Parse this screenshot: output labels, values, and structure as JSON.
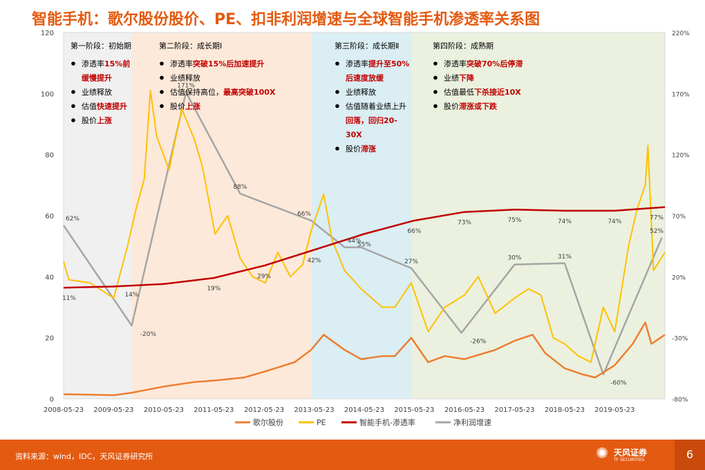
{
  "title": "智能手机：歌尔股份股价、PE、扣非利润增速与全球智能手机渗透率关系图",
  "source": "资料来源：wind，IDC，天风证券研究所",
  "logo": {
    "name": "天风证券",
    "sub": "TF SECURITIES"
  },
  "page_number": "6",
  "colors": {
    "stock": "#ed7d31",
    "pe": "#ffc000",
    "pen": "#c00000",
    "growth": "#a5a5a5",
    "phase1": "#f0f0f0",
    "phase2": "#fde9d9",
    "phase3": "#daeef3",
    "phase4": "#ebf1de",
    "emph": "#c00000"
  },
  "phases": [
    {
      "title": "第一阶段：初始期",
      "start": "2008-05-23",
      "end": "2009-10-01",
      "bullets": [
        [
          [
            "渗透率",
            ""
          ],
          [
            "15%前",
            "e"
          ]
        ],
        [
          [
            "缓慢提升",
            "e"
          ]
        ],
        [
          [
            "业绩释放",
            ""
          ]
        ],
        [
          [
            "估值",
            ""
          ],
          [
            "快速提升",
            "e"
          ]
        ],
        [
          [
            "股价",
            ""
          ],
          [
            "上涨",
            "e"
          ]
        ]
      ]
    },
    {
      "title": "第二阶段：成长期Ⅰ",
      "start": "2009-10-01",
      "end": "2013-05-01",
      "bullets": [
        [
          [
            "渗透率",
            ""
          ],
          [
            "突破15%后加速提升",
            "e"
          ]
        ],
        [
          [
            "业绩释放",
            ""
          ]
        ],
        [
          [
            "估值保持高位，",
            ""
          ],
          [
            "最高突破100X",
            "e"
          ]
        ],
        [
          [
            "股价",
            ""
          ],
          [
            "上涨",
            "e"
          ]
        ]
      ]
    },
    {
      "title": "第三阶段：成长期Ⅱ",
      "start": "2013-05-01",
      "end": "2015-05-01",
      "bullets": [
        [
          [
            "渗透率",
            ""
          ],
          [
            "提升至50%",
            "e"
          ]
        ],
        [
          [
            "后速度放缓",
            "e"
          ]
        ],
        [
          [
            "业绩释放",
            ""
          ]
        ],
        [
          [
            "估值随着业绩上升",
            ""
          ]
        ],
        [
          [
            "回落，回归20-",
            "e"
          ]
        ],
        [
          [
            "30X",
            "e"
          ]
        ],
        [
          [
            "股价",
            ""
          ],
          [
            "滞涨",
            "e"
          ]
        ]
      ]
    },
    {
      "title": "第四阶段：成熟期",
      "start": "2015-05-01",
      "end": "2020-05-23",
      "bullets": [
        [
          [
            "渗透率",
            ""
          ],
          [
            "突破70%后停滞",
            "e"
          ]
        ],
        [
          [
            "业绩",
            ""
          ],
          [
            "下降",
            "e"
          ]
        ],
        [
          [
            "估值最低",
            ""
          ],
          [
            "下杀接近10X",
            "e"
          ]
        ],
        [
          [
            "股价",
            ""
          ],
          [
            "滞涨或下跌",
            "e"
          ]
        ]
      ]
    }
  ],
  "chart_data": {
    "type": "line",
    "x_range": [
      "2008-05-23",
      "2020-05-23"
    ],
    "x_ticks": [
      "2008-05-23",
      "2009-05-23",
      "2010-05-23",
      "2011-05-23",
      "2012-05-23",
      "2013-05-23",
      "2014-05-23",
      "2015-05-23",
      "2016-05-23",
      "2017-05-23",
      "2018-05-23",
      "2019-05-23"
    ],
    "y_left": {
      "min": 0,
      "max": 120,
      "ticks": [
        "0",
        "20",
        "40",
        "60",
        "80",
        "100",
        "120"
      ]
    },
    "y_right": {
      "min": -80,
      "max": 220,
      "ticks": [
        "-80%",
        "-30%",
        "20%",
        "70%",
        "120%",
        "170%",
        "220%"
      ]
    },
    "series": [
      {
        "name": "歌尔股份",
        "axis": "left",
        "points": [
          [
            "2008-05-23",
            1.5
          ],
          [
            "2009-05-23",
            1.2
          ],
          [
            "2009-10-01",
            2
          ],
          [
            "2010-05-23",
            4
          ],
          [
            "2011-01-01",
            5.5
          ],
          [
            "2011-06-01",
            6
          ],
          [
            "2012-01-01",
            7
          ],
          [
            "2012-06-01",
            9
          ],
          [
            "2013-01-01",
            12
          ],
          [
            "2013-05-01",
            16
          ],
          [
            "2013-08-01",
            21
          ],
          [
            "2014-01-01",
            16
          ],
          [
            "2014-05-01",
            13
          ],
          [
            "2014-10-01",
            14
          ],
          [
            "2015-01-01",
            14
          ],
          [
            "2015-05-01",
            20
          ],
          [
            "2015-09-01",
            12
          ],
          [
            "2016-01-01",
            14
          ],
          [
            "2016-05-23",
            13
          ],
          [
            "2017-01-01",
            16
          ],
          [
            "2017-05-23",
            19
          ],
          [
            "2017-10-01",
            21
          ],
          [
            "2018-01-01",
            15
          ],
          [
            "2018-05-23",
            10
          ],
          [
            "2018-10-01",
            8
          ],
          [
            "2019-01-01",
            7
          ],
          [
            "2019-05-23",
            11
          ],
          [
            "2019-10-01",
            18
          ],
          [
            "2020-01-01",
            25
          ],
          [
            "2020-02-15",
            18
          ],
          [
            "2020-05-23",
            21
          ]
        ]
      },
      {
        "name": "PE",
        "axis": "left",
        "points": [
          [
            "2008-05-23",
            45
          ],
          [
            "2008-07-01",
            39
          ],
          [
            "2008-12-01",
            38
          ],
          [
            "2009-05-23",
            33
          ],
          [
            "2009-09-01",
            50
          ],
          [
            "2009-11-01",
            62
          ],
          [
            "2010-01-01",
            72
          ],
          [
            "2010-02-15",
            101
          ],
          [
            "2010-04-01",
            86
          ],
          [
            "2010-07-01",
            75
          ],
          [
            "2010-10-01",
            95
          ],
          [
            "2011-01-01",
            85
          ],
          [
            "2011-03-01",
            76
          ],
          [
            "2011-06-01",
            54
          ],
          [
            "2011-09-01",
            60
          ],
          [
            "2011-12-01",
            46
          ],
          [
            "2012-03-01",
            40
          ],
          [
            "2012-06-01",
            38
          ],
          [
            "2012-09-01",
            48
          ],
          [
            "2012-12-01",
            40
          ],
          [
            "2013-03-01",
            44
          ],
          [
            "2013-05-01",
            55
          ],
          [
            "2013-08-01",
            67
          ],
          [
            "2013-10-01",
            52
          ],
          [
            "2014-01-01",
            42
          ],
          [
            "2014-05-01",
            36
          ],
          [
            "2014-10-01",
            30
          ],
          [
            "2015-01-01",
            30
          ],
          [
            "2015-05-01",
            38
          ],
          [
            "2015-09-01",
            22
          ],
          [
            "2016-01-01",
            30
          ],
          [
            "2016-05-23",
            34
          ],
          [
            "2016-09-01",
            40
          ],
          [
            "2017-01-01",
            28
          ],
          [
            "2017-05-23",
            33
          ],
          [
            "2017-09-01",
            36
          ],
          [
            "2017-12-01",
            34
          ],
          [
            "2018-03-01",
            20
          ],
          [
            "2018-05-23",
            18
          ],
          [
            "2018-09-01",
            14
          ],
          [
            "2018-12-01",
            12
          ],
          [
            "2019-03-01",
            30
          ],
          [
            "2019-05-23",
            22
          ],
          [
            "2019-09-01",
            50
          ],
          [
            "2019-11-01",
            62
          ],
          [
            "2020-01-01",
            70
          ],
          [
            "2020-01-20",
            83
          ],
          [
            "2020-03-01",
            42
          ],
          [
            "2020-05-23",
            48
          ]
        ]
      },
      {
        "name": "智能手机-渗透率",
        "axis": "right",
        "points": [
          [
            "2008-05-23",
            11
          ],
          [
            "2009-05-23",
            12
          ],
          [
            "2010-05-23",
            14
          ],
          [
            "2011-05-23",
            19
          ],
          [
            "2012-05-23",
            29
          ],
          [
            "2013-05-23",
            42
          ],
          [
            "2014-05-23",
            55
          ],
          [
            "2015-05-23",
            66
          ],
          [
            "2016-05-23",
            73
          ],
          [
            "2017-05-23",
            75
          ],
          [
            "2018-05-23",
            74
          ],
          [
            "2019-05-23",
            74
          ],
          [
            "2020-05-23",
            77
          ]
        ]
      },
      {
        "name": "净利润增速",
        "axis": "right",
        "points": [
          [
            "2008-05-23",
            62
          ],
          [
            "2009-10-01",
            -20
          ],
          [
            "2010-11-01",
            171
          ],
          [
            "2011-12-01",
            88
          ],
          [
            "2013-05-01",
            66
          ],
          [
            "2014-01-01",
            44
          ],
          [
            "2014-05-01",
            44
          ],
          [
            "2015-05-01",
            27
          ],
          [
            "2016-05-01",
            -26
          ],
          [
            "2017-05-23",
            30
          ],
          [
            "2018-05-23",
            31
          ],
          [
            "2019-03-01",
            -60
          ],
          [
            "2020-05-01",
            52
          ]
        ]
      }
    ],
    "labels": {
      "pen": [
        [
          "2008-05-23",
          "11%"
        ],
        [
          "2009-10-01",
          "14%"
        ],
        [
          "2011-05-23",
          "19%"
        ],
        [
          "2012-05-23",
          "29%"
        ],
        [
          "2013-05-23",
          "42%"
        ],
        [
          "2014-05-23",
          "55%"
        ],
        [
          "2015-05-23",
          "66%"
        ],
        [
          "2016-05-23",
          "73%"
        ],
        [
          "2017-05-23",
          "75%"
        ],
        [
          "2018-05-23",
          "74%"
        ],
        [
          "2019-05-23",
          "74%"
        ],
        [
          "2020-05-23",
          "77%"
        ]
      ],
      "growth": [
        [
          "2008-05-23",
          "62%"
        ],
        [
          "2009-10-01",
          "-20%"
        ],
        [
          "2010-11-01",
          "171%"
        ],
        [
          "2011-12-01",
          "88%"
        ],
        [
          "2013-05-01",
          "66%"
        ],
        [
          "2014-01-01",
          "44%"
        ],
        [
          "2015-05-01",
          "27%"
        ],
        [
          "2016-05-01",
          "-26%"
        ],
        [
          "2017-05-23",
          "30%"
        ],
        [
          "2018-05-23",
          "31%"
        ],
        [
          "2019-03-01",
          "-60%"
        ],
        [
          "2020-05-01",
          "52%"
        ]
      ]
    },
    "legend": {
      "position": "bottom"
    }
  }
}
